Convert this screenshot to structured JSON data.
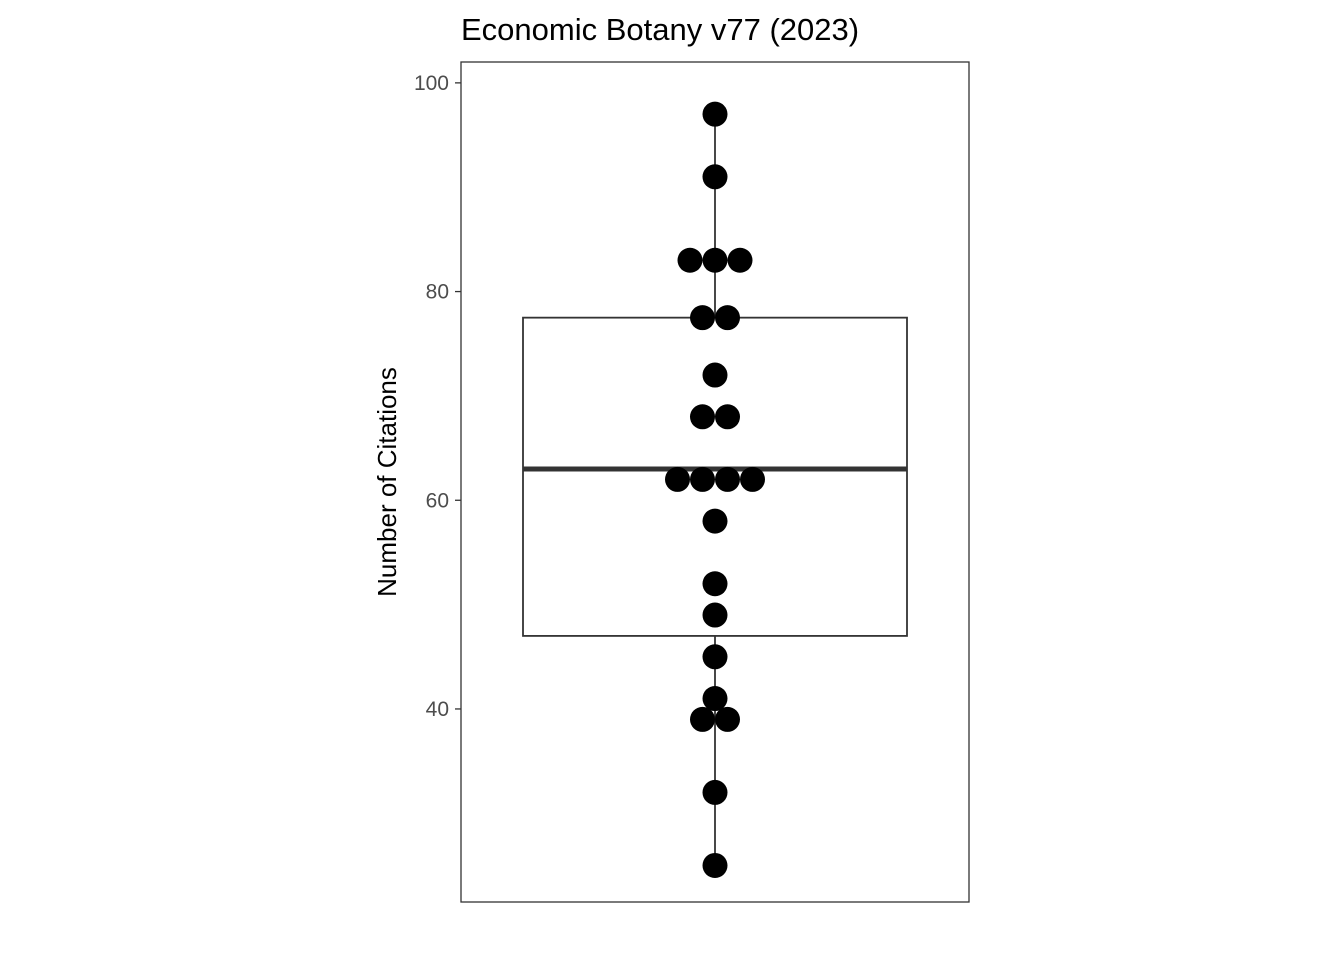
{
  "chart_data": {
    "type": "boxplot",
    "title": "Economic Botany v77 (2023)",
    "xlabel": "",
    "ylabel": "Number of Citations",
    "ylim": [
      21.5,
      102
    ],
    "yticks": [
      40,
      60,
      80,
      100
    ],
    "grid": false,
    "legend": "none",
    "box": {
      "whisker_low": 25,
      "q1": 47,
      "median": 63,
      "q3": 77.5,
      "whisker_high": 97
    },
    "points": [
      {
        "value": 97,
        "stack": [
          0
        ]
      },
      {
        "value": 91,
        "stack": [
          0
        ]
      },
      {
        "value": 83,
        "stack": [
          -1,
          0,
          1
        ]
      },
      {
        "value": 77.5,
        "stack": [
          -0.5,
          0.5
        ]
      },
      {
        "value": 72,
        "stack": [
          0
        ]
      },
      {
        "value": 68,
        "stack": [
          -0.5,
          0.5
        ]
      },
      {
        "value": 62,
        "stack": [
          -1.5,
          -0.5,
          0.5,
          1.5
        ]
      },
      {
        "value": 58,
        "stack": [
          0
        ]
      },
      {
        "value": 52,
        "stack": [
          0
        ]
      },
      {
        "value": 49,
        "stack": [
          0
        ]
      },
      {
        "value": 45,
        "stack": [
          0
        ]
      },
      {
        "value": 41,
        "stack": [
          0
        ]
      },
      {
        "value": 39,
        "stack": [
          -0.5,
          0.5
        ]
      },
      {
        "value": 32,
        "stack": [
          0
        ]
      },
      {
        "value": 25,
        "stack": [
          0
        ]
      }
    ],
    "colors": {
      "points": "#000000",
      "box_stroke": "#333333",
      "tick_text": "#4d4d4d"
    }
  }
}
